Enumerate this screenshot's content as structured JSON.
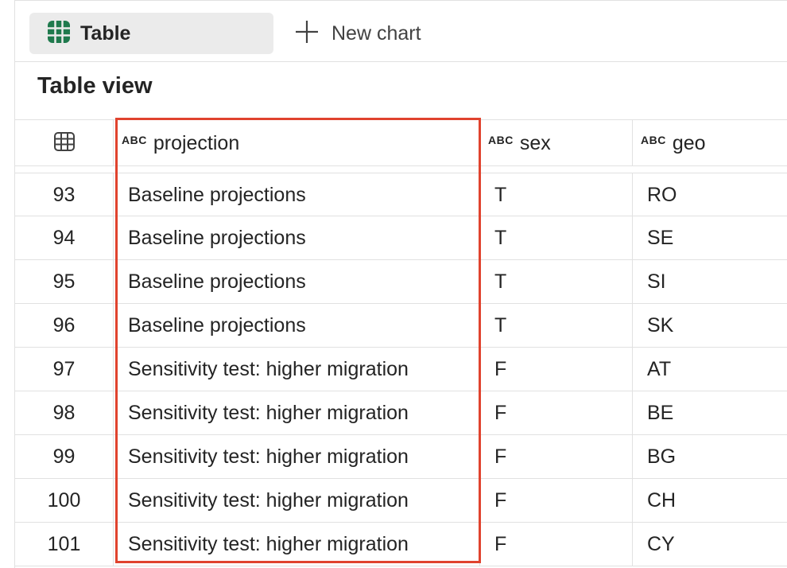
{
  "toolbar": {
    "table_tab_label": "Table",
    "new_chart_label": "New chart"
  },
  "title": "Table view",
  "table": {
    "columns": [
      {
        "type": "",
        "label": ""
      },
      {
        "type": "ABC",
        "label": "projection"
      },
      {
        "type": "ABC",
        "label": "sex"
      },
      {
        "type": "ABC",
        "label": "geo"
      }
    ],
    "rows": [
      {
        "idx": "93",
        "projection": "Baseline projections",
        "sex": "T",
        "geo": "RO"
      },
      {
        "idx": "94",
        "projection": "Baseline projections",
        "sex": "T",
        "geo": "SE"
      },
      {
        "idx": "95",
        "projection": "Baseline projections",
        "sex": "T",
        "geo": "SI"
      },
      {
        "idx": "96",
        "projection": "Baseline projections",
        "sex": "T",
        "geo": "SK"
      },
      {
        "idx": "97",
        "projection": "Sensitivity test: higher migration",
        "sex": "F",
        "geo": "AT"
      },
      {
        "idx": "98",
        "projection": "Sensitivity test: higher migration",
        "sex": "F",
        "geo": "BE"
      },
      {
        "idx": "99",
        "projection": "Sensitivity test: higher migration",
        "sex": "F",
        "geo": "BG"
      },
      {
        "idx": "100",
        "projection": "Sensitivity test: higher migration",
        "sex": "F",
        "geo": "CH"
      },
      {
        "idx": "101",
        "projection": "Sensitivity test: higher migration",
        "sex": "F",
        "geo": "CY"
      }
    ]
  },
  "colors": {
    "highlight": "#e0432e",
    "table_icon": "#1f7a4d"
  }
}
